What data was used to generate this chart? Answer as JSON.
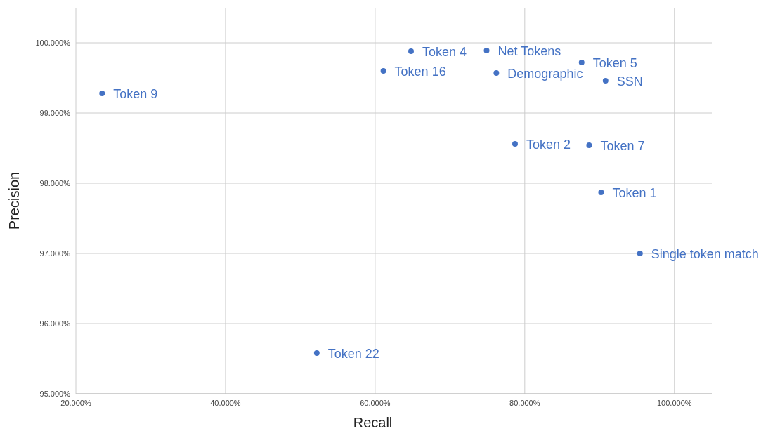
{
  "chart_data": {
    "type": "scatter",
    "xlabel": "Recall",
    "ylabel": "Precision",
    "xlim": [
      20,
      105
    ],
    "ylim": [
      95,
      100.5
    ],
    "xticks": [
      {
        "value": 20,
        "label": "20.000%"
      },
      {
        "value": 40,
        "label": "40.000%"
      },
      {
        "value": 60,
        "label": "60.000%"
      },
      {
        "value": 80,
        "label": "80.000%"
      },
      {
        "value": 100,
        "label": "100.000%"
      }
    ],
    "yticks": [
      {
        "value": 95,
        "label": "95.000%"
      },
      {
        "value": 96,
        "label": "96.000%"
      },
      {
        "value": 97,
        "label": "97.000%"
      },
      {
        "value": 98,
        "label": "98.000%"
      },
      {
        "value": 99,
        "label": "99.000%"
      },
      {
        "value": 100,
        "label": "100.000%"
      }
    ],
    "grid": true,
    "marker": "circle",
    "series": [
      {
        "name": "Token 9",
        "color": "#4472c4",
        "x": [
          23.5
        ],
        "values": [
          99.28
        ]
      },
      {
        "name": "Token 16",
        "color": "#4472c4",
        "x": [
          61.1
        ],
        "values": [
          99.6
        ]
      },
      {
        "name": "Token 4",
        "color": "#4472c4",
        "x": [
          64.8
        ],
        "values": [
          99.88
        ]
      },
      {
        "name": "Net Tokens",
        "color": "#4472c4",
        "x": [
          74.9
        ],
        "values": [
          99.89
        ]
      },
      {
        "name": "Demographic",
        "color": "#4472c4",
        "x": [
          76.2
        ],
        "values": [
          99.57
        ]
      },
      {
        "name": "Token 5",
        "color": "#4472c4",
        "x": [
          87.6
        ],
        "values": [
          99.72
        ]
      },
      {
        "name": "SSN",
        "color": "#4472c4",
        "x": [
          90.8
        ],
        "values": [
          99.46
        ]
      },
      {
        "name": "Token 2",
        "color": "#4472c4",
        "x": [
          78.7
        ],
        "values": [
          98.56
        ]
      },
      {
        "name": "Token 7",
        "color": "#4472c4",
        "x": [
          88.6
        ],
        "values": [
          98.54
        ]
      },
      {
        "name": "Token 1",
        "color": "#4472c4",
        "x": [
          90.2
        ],
        "values": [
          97.87
        ]
      },
      {
        "name": "Single token match",
        "color": "#4472c4",
        "x": [
          95.4
        ],
        "values": [
          97.0
        ]
      },
      {
        "name": "Token 22",
        "color": "#4472c4",
        "x": [
          52.2
        ],
        "values": [
          95.58
        ]
      }
    ]
  }
}
